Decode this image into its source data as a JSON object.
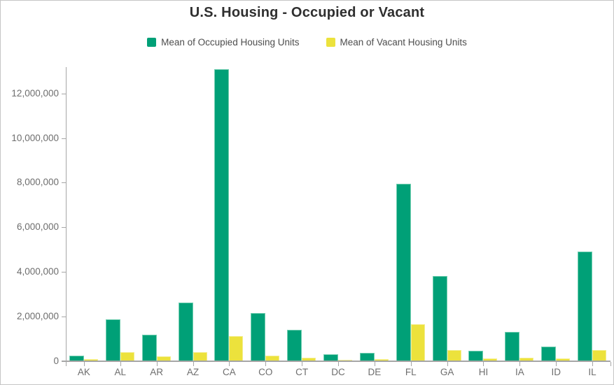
{
  "chart_data": {
    "type": "bar",
    "title": "U.S. Housing - Occupied or Vacant",
    "categories": [
      "AK",
      "AL",
      "AR",
      "AZ",
      "CA",
      "CO",
      "CT",
      "DC",
      "DE",
      "FL",
      "GA",
      "HI",
      "IA",
      "ID",
      "IL"
    ],
    "series": [
      {
        "name": "Mean of Occupied Housing Units",
        "color": "#00a077",
        "edge_color": "#74cfb2",
        "values": [
          245000,
          1870000,
          1165000,
          2625000,
          13100000,
          2145000,
          1390000,
          290000,
          360000,
          7940000,
          3810000,
          455000,
          1290000,
          645000,
          4905000
        ]
      },
      {
        "name": "Mean of Vacant Housing Units",
        "color": "#ece23c",
        "edge_color": "#f3ed8e",
        "values": [
          75000,
          380000,
          215000,
          395000,
          1110000,
          235000,
          140000,
          45000,
          85000,
          1635000,
          485000,
          105000,
          140000,
          120000,
          490000
        ]
      }
    ],
    "xlabel": "",
    "ylabel": "",
    "ylim": [
      0,
      13200000
    ],
    "yticks": [
      0,
      2000000,
      4000000,
      6000000,
      8000000,
      10000000,
      12000000
    ],
    "ytick_labels": [
      "0",
      "2,000,000",
      "4,000,000",
      "6,000,000",
      "8,000,000",
      "10,000,000",
      "12,000,000"
    ],
    "grid": false,
    "legend_position": "top"
  }
}
